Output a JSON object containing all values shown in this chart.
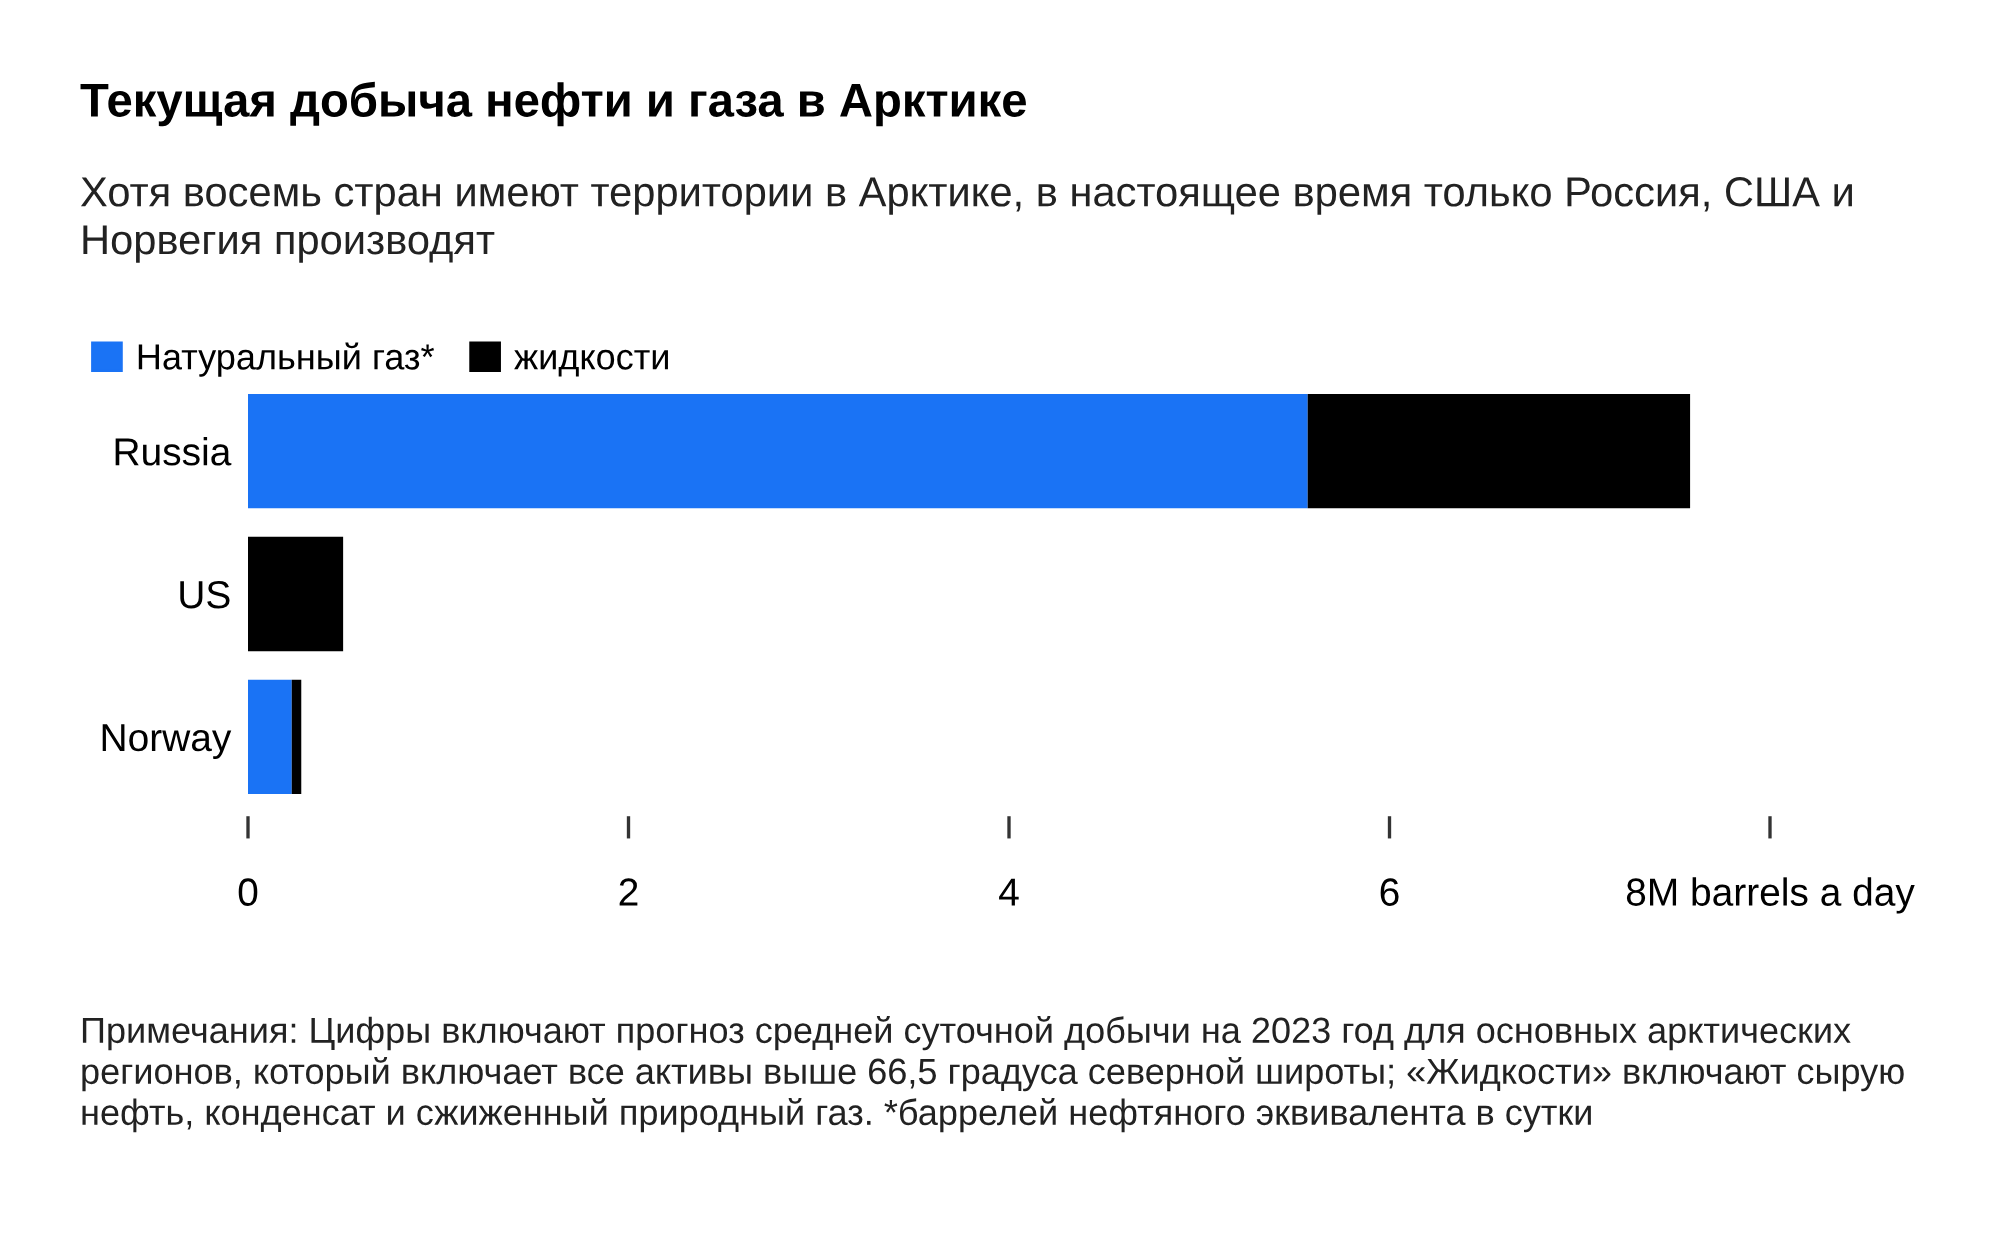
{
  "chart_data": {
    "type": "bar",
    "orientation": "horizontal",
    "stacked": true,
    "title": "Текущая добыча нефти и газа в Арктике",
    "subtitle": "Хотя восемь стран имеют территории в Арктике, в настоящее время только Россия, США и Норвегия производят",
    "categories": [
      "Russia",
      "US",
      "Norway"
    ],
    "series": [
      {
        "name": "Натуральный газ*",
        "color": "#1a73f5",
        "values": [
          5.57,
          0,
          0.23
        ]
      },
      {
        "name": "жидкости",
        "color": "#000000",
        "values": [
          2.01,
          0.5,
          0.05
        ]
      }
    ],
    "xlim": [
      0,
      8
    ],
    "xticks": [
      0,
      2,
      4,
      6,
      {
        "value": 8,
        "label": "8M barrels a day"
      }
    ],
    "grid": false,
    "legend": "top left",
    "annotations": [
      "Примечания: Цифры включают прогноз средней суточной добычи на 2023 год для основных арктических регионов, который включает все активы выше 66,5 градуса северной широты; «Жидкости» включают сырую нефть, конденсат и сжиженный природный газ. *баррелей нефтяного эквивалента в сутки"
    ]
  }
}
